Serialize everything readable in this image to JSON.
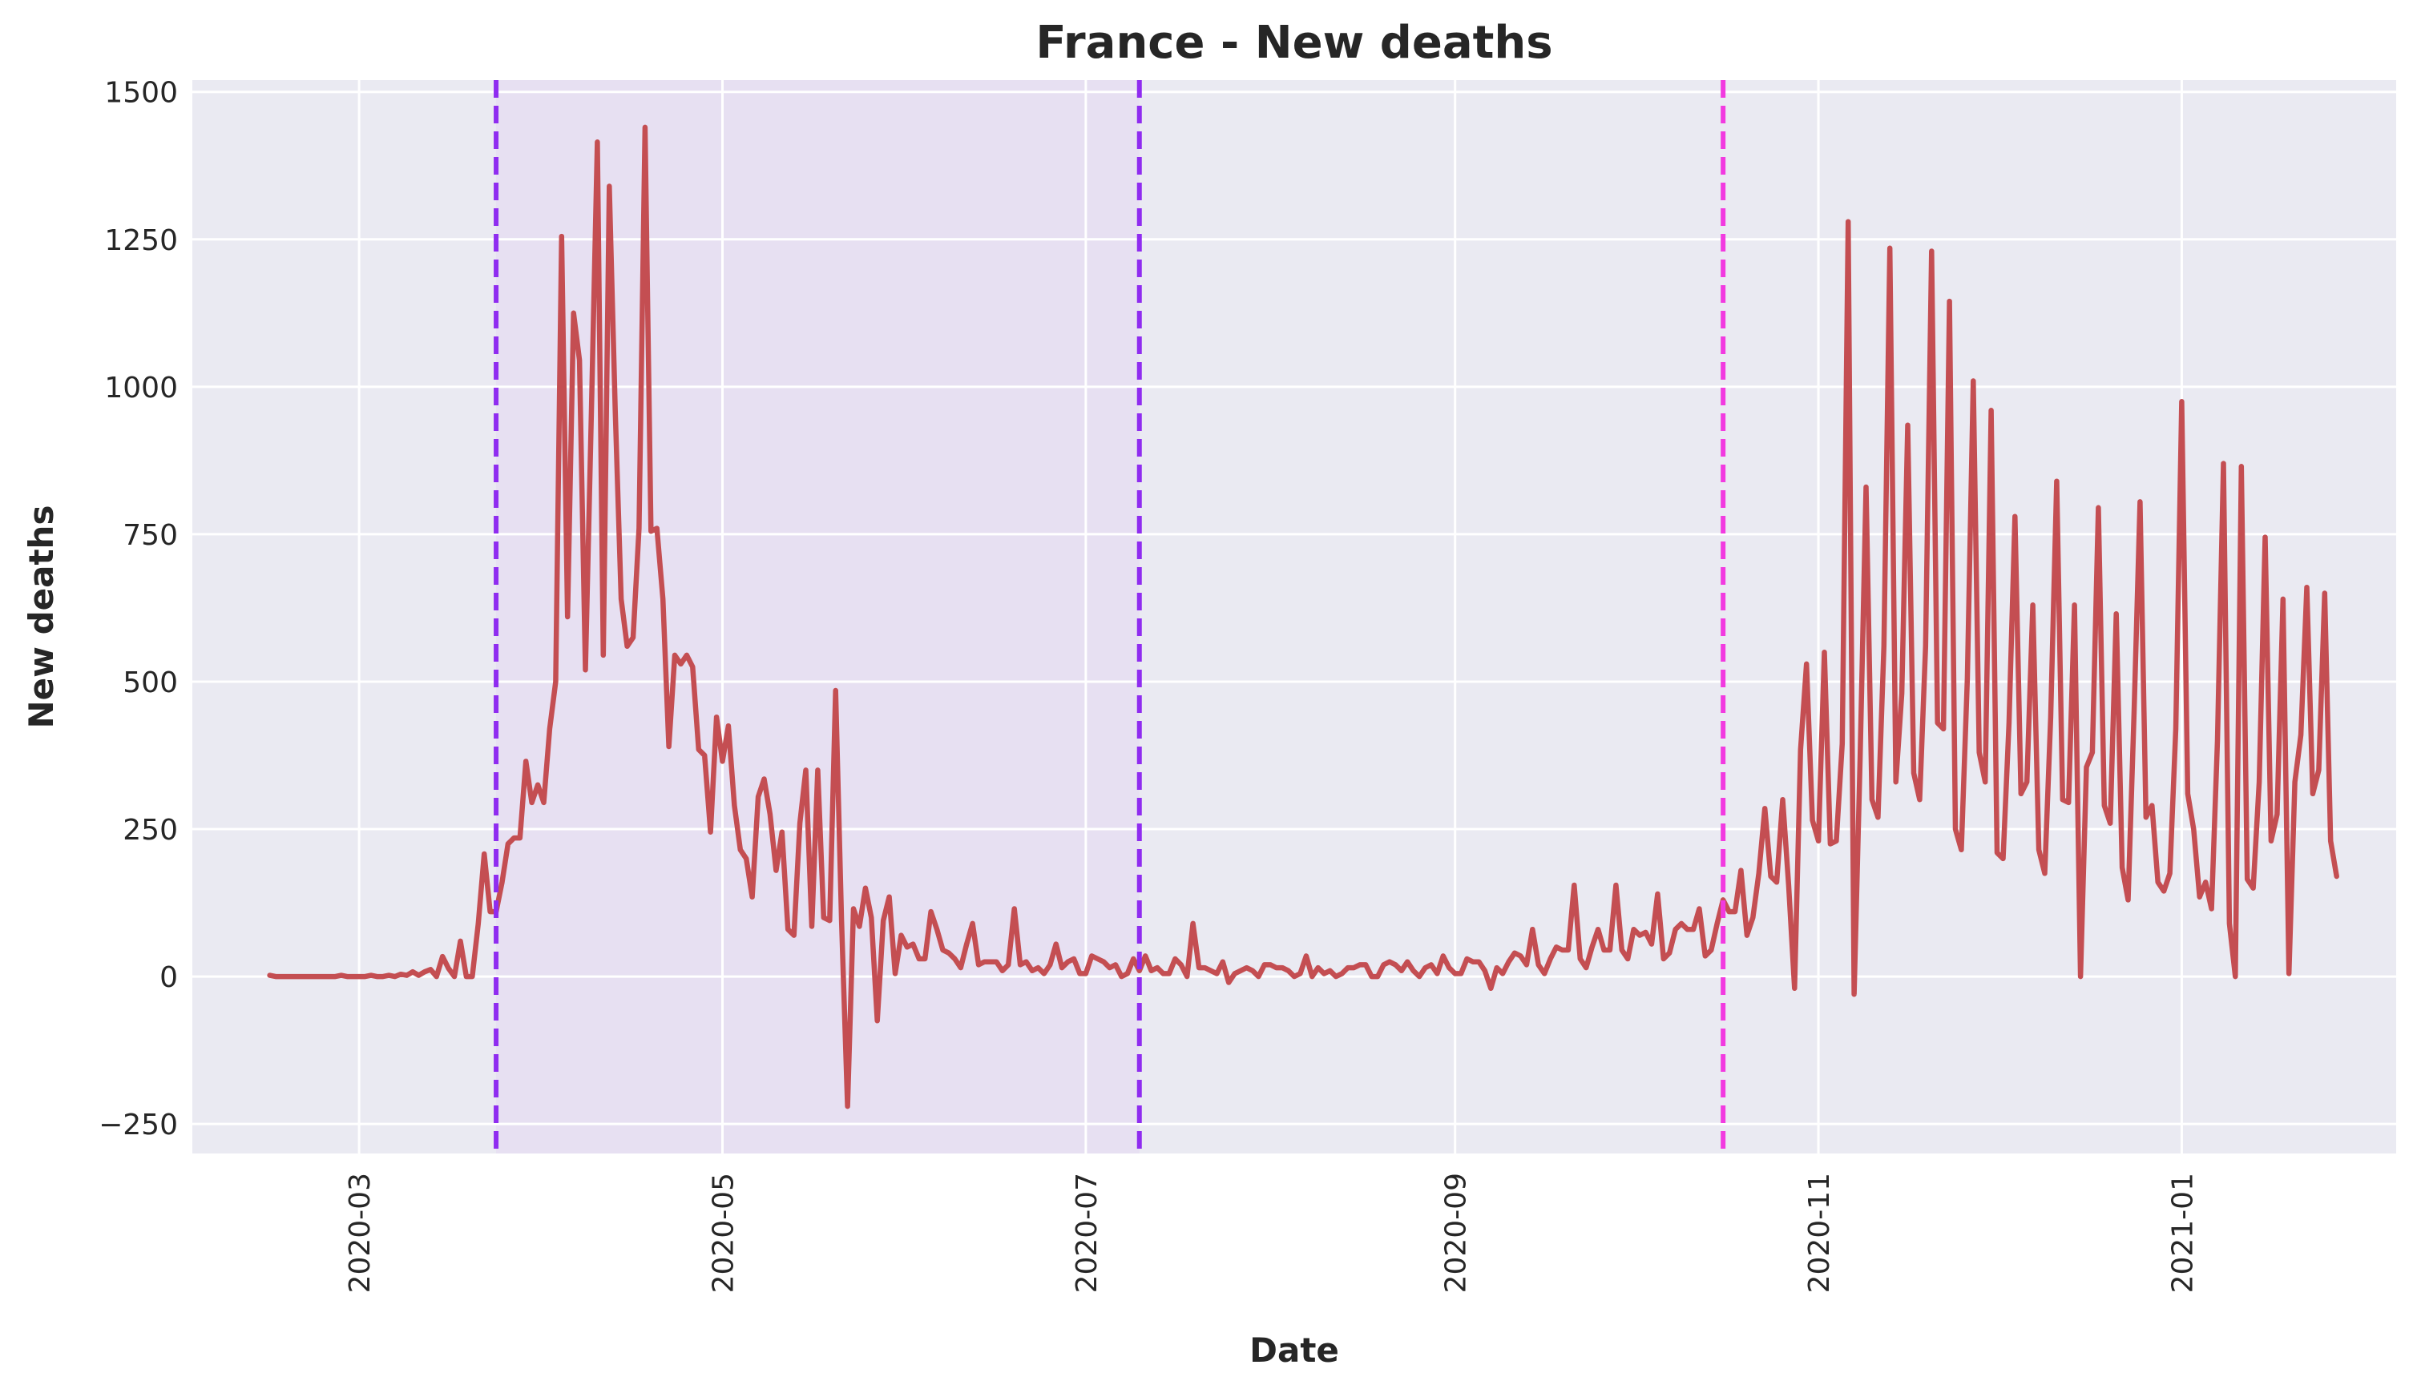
{
  "chart_data": {
    "type": "line",
    "title": "France - New deaths",
    "xlabel": "Date",
    "ylabel": "New deaths",
    "grid": true,
    "background_color": "#eaeaf2",
    "line_color": "#c44e52",
    "xlim": [
      "2020-02-02",
      "2021-02-06"
    ],
    "ylim": [
      -300,
      1520
    ],
    "x_ticks": [
      "2020-03",
      "2020-05",
      "2020-07",
      "2020-09",
      "2020-11",
      "2021-01"
    ],
    "y_ticks": [
      -250,
      0,
      250,
      500,
      750,
      1000,
      1250,
      1500
    ],
    "y_tick_labels": [
      "−250",
      "0",
      "250",
      "500",
      "750",
      "1000",
      "1250",
      "1500"
    ],
    "shaded_region": {
      "start": "2020-03-24",
      "end": "2020-07-10",
      "color": "#e7e0f2"
    },
    "vertical_lines": [
      {
        "x": "2020-03-24",
        "color": "#8f2cf0",
        "style": "dashed"
      },
      {
        "x": "2020-07-10",
        "color": "#8f2cf0",
        "style": "dashed"
      },
      {
        "x": "2020-10-16",
        "color": "#f23ae0",
        "style": "dashed"
      }
    ],
    "series": [
      {
        "x_start": "2020-02-15",
        "x_step_days": 1,
        "values": [
          2,
          0,
          0,
          0,
          0,
          0,
          0,
          0,
          0,
          0,
          0,
          0,
          2,
          0,
          0,
          0,
          0,
          2,
          0,
          0,
          2,
          0,
          4,
          2,
          8,
          2,
          8,
          12,
          0,
          34,
          14,
          0,
          60,
          0,
          0,
          90,
          208,
          110,
          110,
          160,
          225,
          235,
          235,
          365,
          295,
          325,
          295,
          420,
          500,
          1255,
          610,
          1125,
          1045,
          520,
          960,
          1415,
          545,
          1340,
          960,
          640,
          560,
          575,
          760,
          1440,
          755,
          760,
          640,
          390,
          545,
          530,
          545,
          525,
          385,
          375,
          245,
          440,
          365,
          425,
          290,
          215,
          200,
          135,
          305,
          335,
          275,
          180,
          245,
          80,
          70,
          260,
          350,
          85,
          350,
          100,
          95,
          485,
          95,
          -220,
          115,
          85,
          150,
          100,
          -75,
          95,
          135,
          5,
          70,
          50,
          55,
          30,
          30,
          110,
          80,
          45,
          40,
          30,
          15,
          55,
          90,
          20,
          25,
          25,
          25,
          10,
          20,
          115,
          20,
          25,
          10,
          15,
          5,
          20,
          55,
          15,
          25,
          30,
          5,
          5,
          35,
          30,
          25,
          15,
          20,
          0,
          5,
          30,
          10,
          35,
          10,
          15,
          5,
          5,
          30,
          20,
          0,
          90,
          15,
          15,
          10,
          5,
          25,
          -10,
          5,
          10,
          15,
          10,
          0,
          20,
          20,
          15,
          15,
          10,
          0,
          5,
          35,
          0,
          15,
          5,
          10,
          0,
          5,
          15,
          15,
          20,
          20,
          0,
          0,
          20,
          25,
          20,
          10,
          25,
          10,
          0,
          15,
          20,
          5,
          35,
          15,
          5,
          5,
          30,
          25,
          25,
          10,
          -20,
          15,
          5,
          25,
          40,
          35,
          20,
          80,
          20,
          5,
          30,
          50,
          45,
          45,
          155,
          30,
          15,
          50,
          80,
          45,
          45,
          155,
          45,
          30,
          80,
          70,
          75,
          55,
          140,
          30,
          40,
          80,
          90,
          80,
          80,
          115,
          35,
          45,
          90,
          130,
          110,
          110,
          180,
          70,
          100,
          175,
          285,
          170,
          160,
          300,
          155,
          -20,
          385,
          530,
          265,
          230,
          550,
          225,
          230,
          395,
          1280,
          -30,
          370,
          830,
          300,
          270,
          560,
          1235,
          330,
          480,
          935,
          345,
          300,
          560,
          1230,
          430,
          420,
          1145,
          250,
          215,
          505,
          1010,
          380,
          330,
          960,
          210,
          200,
          430,
          780,
          310,
          330,
          630,
          215,
          175,
          440,
          840,
          300,
          295,
          630,
          0,
          355,
          380,
          795,
          290,
          260,
          615,
          185,
          130,
          450,
          805,
          270,
          290,
          160,
          145,
          175,
          420,
          975,
          310,
          250,
          135,
          160,
          115,
          400,
          870,
          90,
          0,
          865,
          165,
          150,
          330,
          745,
          230,
          275,
          640,
          5,
          330,
          410,
          660,
          310,
          350,
          650,
          230,
          170
        ]
      }
    ]
  }
}
